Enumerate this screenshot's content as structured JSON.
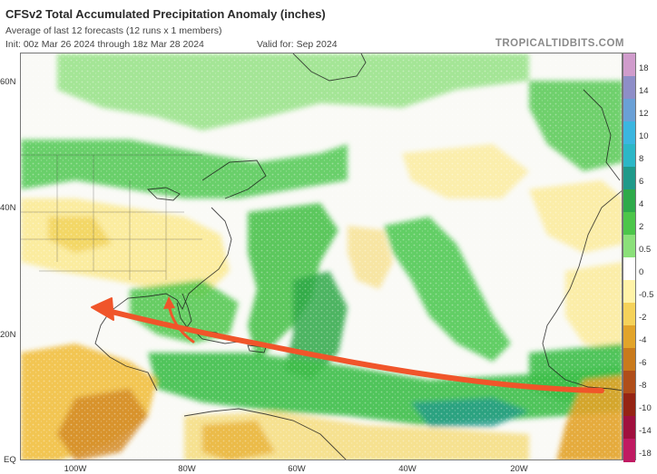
{
  "header": {
    "title": "CFSv2 Total Accumulated Precipitation Anomaly (inches)",
    "subtitle": "Average of last 12 forecasts (12 runs x 1 members)",
    "init": "Init: 00z Mar 26 2024 through 18z Mar 28 2024",
    "valid": "Valid for: Sep 2024",
    "brand": "TROPICALTIDBITS.COM"
  },
  "axes": {
    "latitude_labels": [
      "60N",
      "40N",
      "20N",
      "EQ"
    ],
    "longitude_labels": [
      "100W",
      "80W",
      "60W",
      "40W",
      "20W"
    ]
  },
  "colorbar": {
    "ticks": [
      "18",
      "14",
      "12",
      "10",
      "8",
      "6",
      "4",
      "2",
      "0.5",
      "0",
      "-0.5",
      "-2",
      "-4",
      "-6",
      "-8",
      "-10",
      "-14",
      "-18"
    ],
    "colors": [
      "#d09ccc",
      "#8e8ec8",
      "#6aa0d6",
      "#3bb6e0",
      "#2cb7c7",
      "#1f9a8a",
      "#2eaa4a",
      "#4cc64a",
      "#8be07a",
      "#ffffff",
      "#fff3a8",
      "#f5d25a",
      "#e2a42a",
      "#c97a1c",
      "#b04e1a",
      "#962414",
      "#a0103e",
      "#c01a62"
    ]
  },
  "map": {
    "region": "Atlantic basin, equator to ~65N",
    "annotations": [
      "red arrow from West Africa to Gulf of Mexico",
      "short red arrow toward Florida"
    ]
  }
}
